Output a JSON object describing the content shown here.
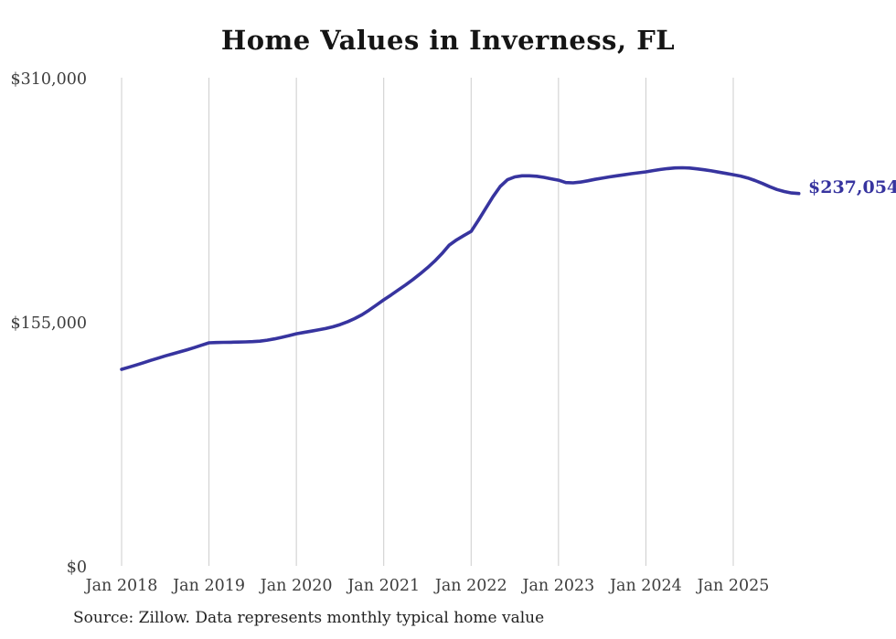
{
  "chart_data": {
    "type": "line",
    "title": "Home Values in Inverness, FL",
    "source": "Source: Zillow. Data represents monthly typical home value",
    "end_label": "$237,054",
    "latest_value": 237054,
    "xlabel": "",
    "ylabel": "",
    "ylim": [
      0,
      310000
    ],
    "grid": "vertical-year-lines-only",
    "legend": "none",
    "line_color": "#37349f",
    "grid_color": "#cccccc",
    "tick_color": "#3d3d3d",
    "x_tick_labels": [
      "Jan 2018",
      "Jan 2019",
      "Jan 2020",
      "Jan 2021",
      "Jan 2022",
      "Jan 2023",
      "Jan 2024",
      "Jan 2025"
    ],
    "y_ticks": [
      {
        "label": "$0",
        "value": 0
      },
      {
        "label": "$155,000",
        "value": 155000
      },
      {
        "label": "$310,000",
        "value": 310000
      }
    ],
    "series": [
      {
        "name": "Monthly typical home value",
        "start": "2018-01",
        "end": "2025-10",
        "frequency": "monthly",
        "values": [
          125400,
          126700,
          128100,
          129600,
          131100,
          132500,
          133900,
          135200,
          136500,
          137800,
          139200,
          140700,
          142200,
          142400,
          142500,
          142600,
          142700,
          142800,
          143000,
          143300,
          143900,
          144700,
          145700,
          146800,
          148000,
          148800,
          149600,
          150400,
          151300,
          152400,
          153800,
          155500,
          157600,
          160000,
          163000,
          166200,
          169500,
          172600,
          175800,
          179000,
          182400,
          186000,
          189900,
          194100,
          198900,
          204300,
          207600,
          210300,
          213000,
          220000,
          227500,
          235000,
          241500,
          245800,
          247600,
          248300,
          248300,
          248000,
          247300,
          246400,
          245500,
          244000,
          243800,
          244300,
          245100,
          246000,
          246800,
          247600,
          248300,
          248900,
          249600,
          250200,
          250800,
          251600,
          252300,
          252900,
          253300,
          253400,
          253200,
          252700,
          252100,
          251400,
          250600,
          249800,
          249000,
          248100,
          246900,
          245300,
          243400,
          241400,
          239600,
          238300,
          237400,
          237054
        ]
      }
    ]
  }
}
